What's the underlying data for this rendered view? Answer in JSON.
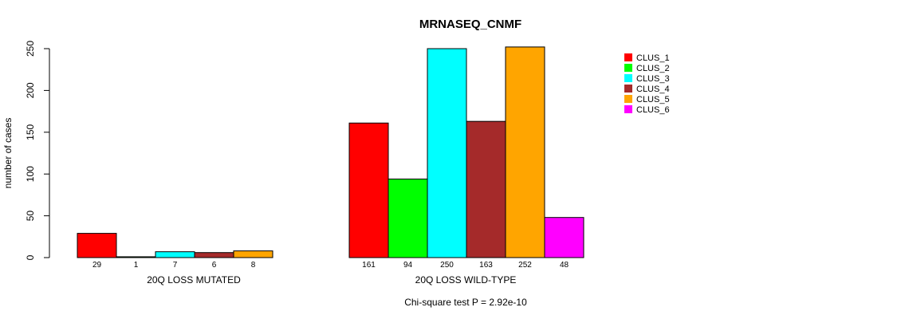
{
  "chart_data": {
    "type": "bar",
    "title": "MRNASEQ_CNMF",
    "ylabel": "number of cases",
    "ylim": [
      0,
      250
    ],
    "yticks": [
      0,
      50,
      100,
      150,
      200,
      250
    ],
    "groups": [
      {
        "label": "20Q LOSS MUTATED",
        "bars": [
          {
            "series": "CLUS_1",
            "value": 29,
            "label": "29"
          },
          {
            "series": "CLUS_2",
            "value": 1,
            "label": "1"
          },
          {
            "series": "CLUS_3",
            "value": 7,
            "label": "7"
          },
          {
            "series": "CLUS_4",
            "value": 6,
            "label": "6"
          },
          {
            "series": "CLUS_5",
            "value": 8,
            "label": "8"
          }
        ]
      },
      {
        "label": "20Q LOSS WILD-TYPE",
        "bars": [
          {
            "series": "CLUS_1",
            "value": 161,
            "label": "161"
          },
          {
            "series": "CLUS_2",
            "value": 94,
            "label": "94"
          },
          {
            "series": "CLUS_3",
            "value": 250,
            "label": "250"
          },
          {
            "series": "CLUS_4",
            "value": 163,
            "label": "163"
          },
          {
            "series": "CLUS_5",
            "value": 252,
            "label": "252"
          },
          {
            "series": "CLUS_6",
            "value": 48,
            "label": "48"
          }
        ]
      }
    ],
    "legend": {
      "position": "top-right",
      "entries": [
        {
          "name": "CLUS_1",
          "color": "#ff0000"
        },
        {
          "name": "CLUS_2",
          "color": "#00ff00"
        },
        {
          "name": "CLUS_3",
          "color": "#00ffff"
        },
        {
          "name": "CLUS_4",
          "color": "#a52a2a"
        },
        {
          "name": "CLUS_5",
          "color": "#ffa500"
        },
        {
          "name": "CLUS_6",
          "color": "#ff00ff"
        }
      ]
    },
    "footnote": "Chi-square test P = 2.92e-10",
    "grid": false
  }
}
